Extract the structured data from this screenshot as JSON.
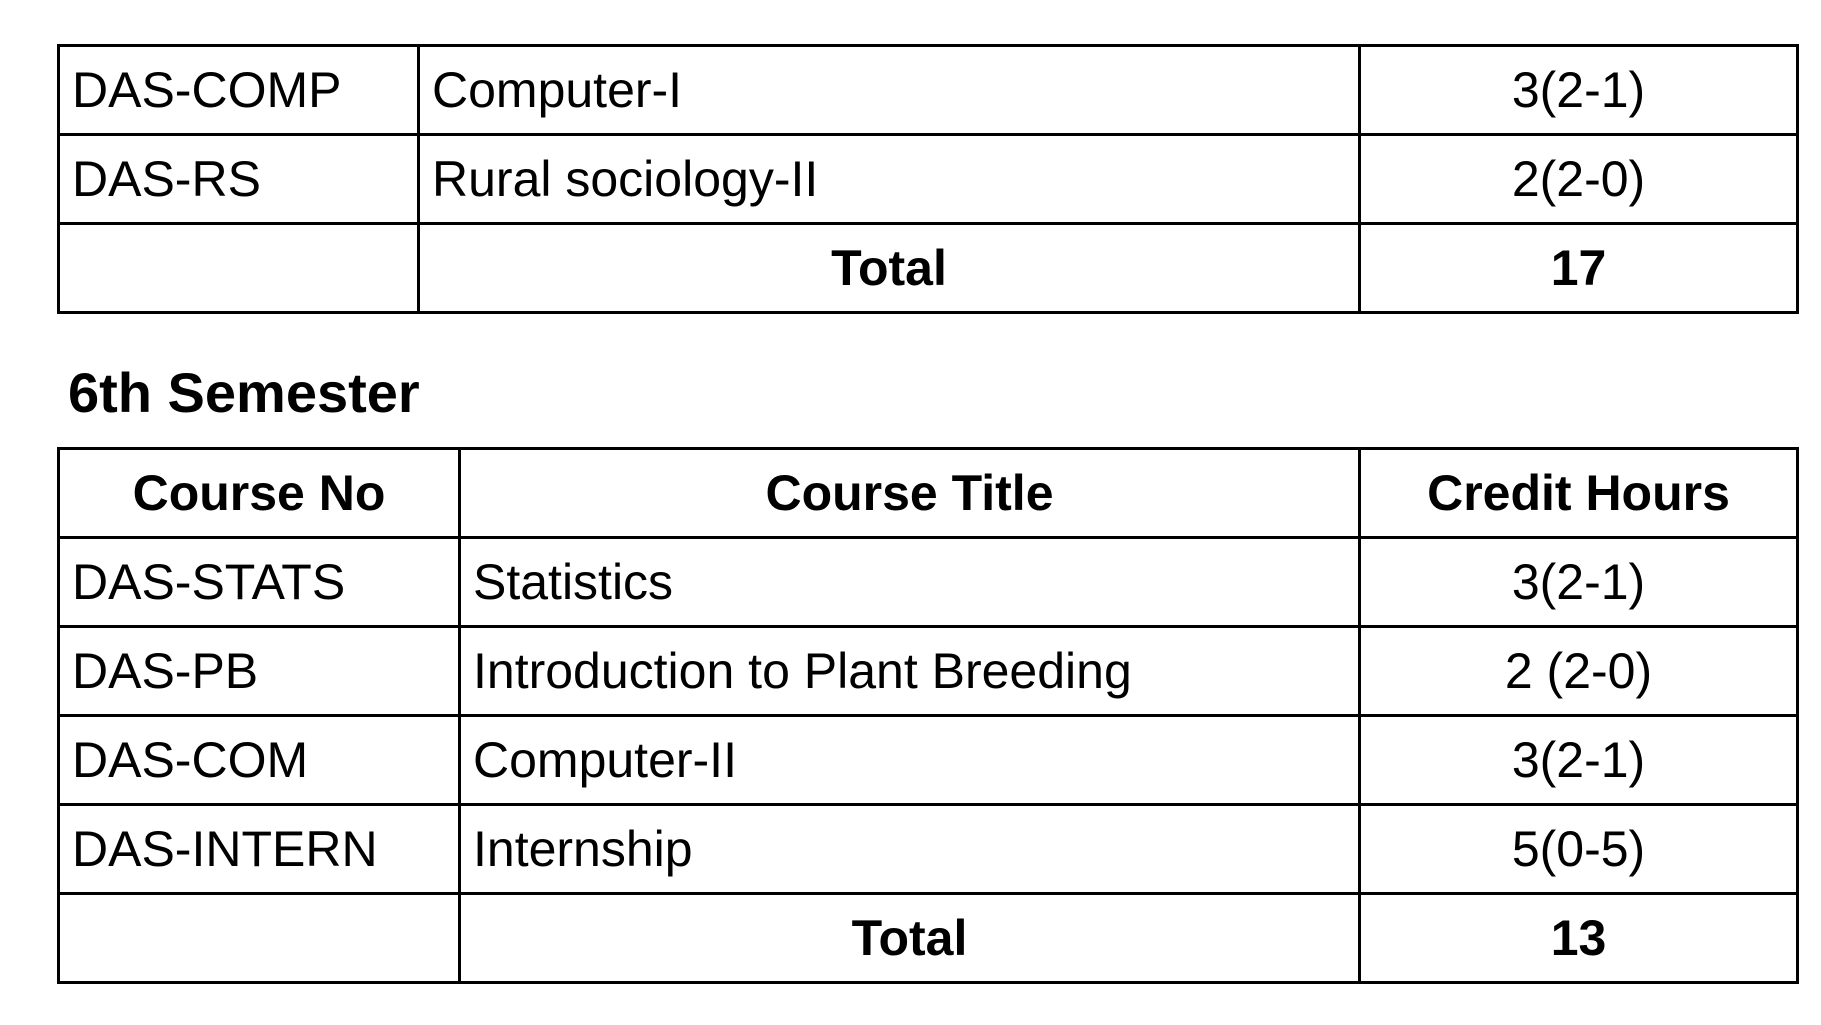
{
  "semester5": {
    "rows": [
      {
        "course_no": "DAS-COMP",
        "title": "Computer-I",
        "credit": "3(2-1)"
      },
      {
        "course_no": "DAS-RS",
        "title": "Rural sociology-II",
        "credit": "2(2-0)"
      }
    ],
    "total_label": "Total",
    "total_value": "17"
  },
  "semester6": {
    "heading": "6th Semester",
    "headers": {
      "course_no": "Course No",
      "title": "Course Title",
      "credit": "Credit Hours"
    },
    "rows": [
      {
        "course_no": "DAS-STATS",
        "title": "Statistics",
        "credit": "3(2-1)"
      },
      {
        "course_no": "DAS-PB",
        "title": "Introduction to Plant Breeding",
        "credit": "2 (2-0)"
      },
      {
        "course_no": "DAS-COM",
        "title": "Computer-II",
        "credit": "3(2-1)"
      },
      {
        "course_no": "DAS-INTERN",
        "title": "Internship",
        "credit": "5(0-5)"
      }
    ],
    "total_label": "Total",
    "total_value": "13"
  }
}
